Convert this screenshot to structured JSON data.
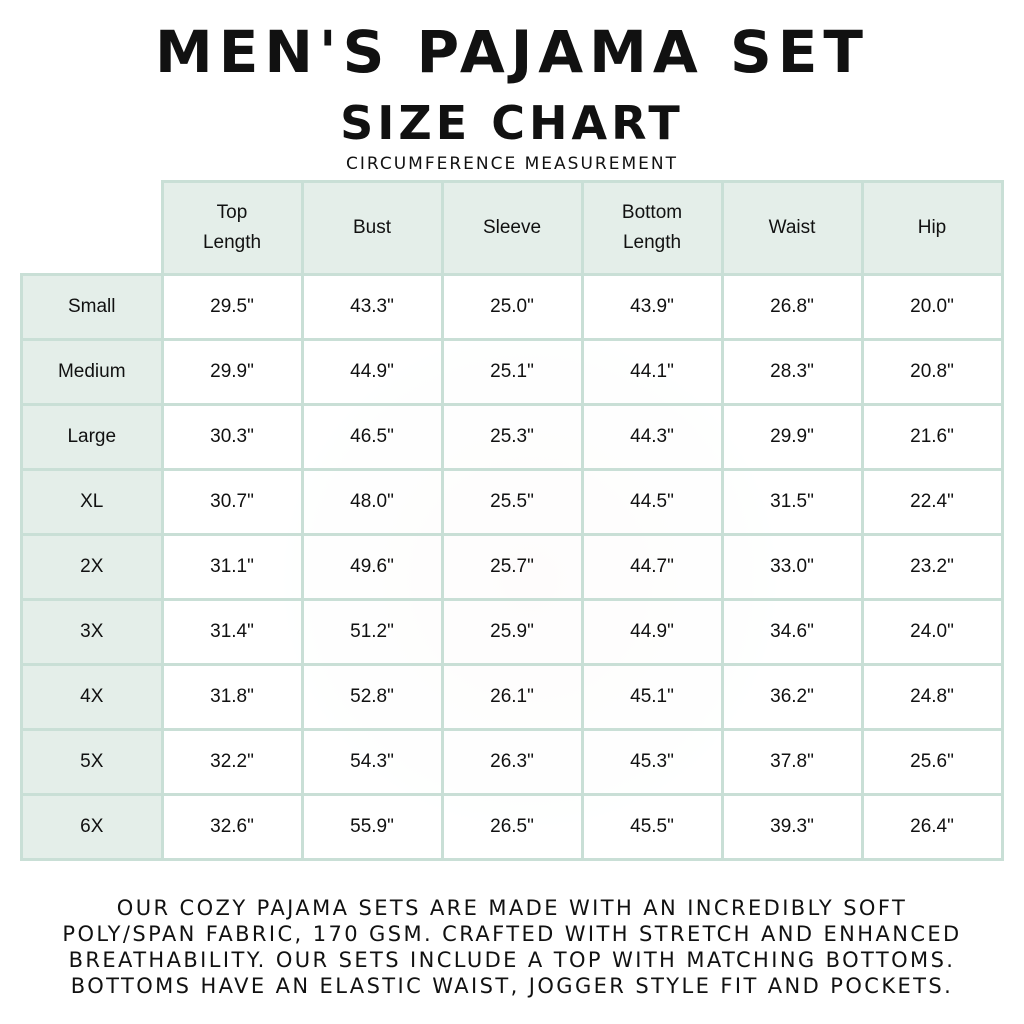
{
  "title": "MEN'S PAJAMA SET",
  "subtitle": "SIZE CHART",
  "note": "CIRCUMFERENCE MEASUREMENT",
  "columns": [
    "Top\nLength",
    "Bust",
    "Sleeve",
    "Bottom\nLength",
    "Waist",
    "Hip"
  ],
  "rows": [
    {
      "size": "Small",
      "values": [
        "29.5\"",
        "43.3\"",
        "25.0\"",
        "43.9\"",
        "26.8\"",
        "20.0\""
      ]
    },
    {
      "size": "Medium",
      "values": [
        "29.9\"",
        "44.9\"",
        "25.1\"",
        "44.1\"",
        "28.3\"",
        "20.8\""
      ]
    },
    {
      "size": "Large",
      "values": [
        "30.3\"",
        "46.5\"",
        "25.3\"",
        "44.3\"",
        "29.9\"",
        "21.6\""
      ]
    },
    {
      "size": "XL",
      "values": [
        "30.7\"",
        "48.0\"",
        "25.5\"",
        "44.5\"",
        "31.5\"",
        "22.4\""
      ]
    },
    {
      "size": "2X",
      "values": [
        "31.1\"",
        "49.6\"",
        "25.7\"",
        "44.7\"",
        "33.0\"",
        "23.2\""
      ]
    },
    {
      "size": "3X",
      "values": [
        "31.4\"",
        "51.2\"",
        "25.9\"",
        "44.9\"",
        "34.6\"",
        "24.0\""
      ]
    },
    {
      "size": "4X",
      "values": [
        "31.8\"",
        "52.8\"",
        "26.1\"",
        "45.1\"",
        "36.2\"",
        "24.8\""
      ]
    },
    {
      "size": "5X",
      "values": [
        "32.2\"",
        "54.3\"",
        "26.3\"",
        "45.3\"",
        "37.8\"",
        "25.6\""
      ]
    },
    {
      "size": "6X",
      "values": [
        "32.6\"",
        "55.9\"",
        "26.5\"",
        "45.5\"",
        "39.3\"",
        "26.4\""
      ]
    }
  ],
  "footer": [
    "OUR COZY PAJAMA SETS ARE MADE WITH AN INCREDIBLY SOFT",
    "POLY/SPAN FABRIC, 170 GSM. CRAFTED WITH STRETCH AND ENHANCED",
    "BREATHABILITY. OUR SETS INCLUDE A TOP WITH MATCHING BOTTOMS.",
    "BOTTOMS HAVE AN ELASTIC WAIST, JOGGER STYLE FIT AND POCKETS."
  ],
  "colors": {
    "header_fill": "#e4eee9",
    "border": "#c9dfd6"
  }
}
